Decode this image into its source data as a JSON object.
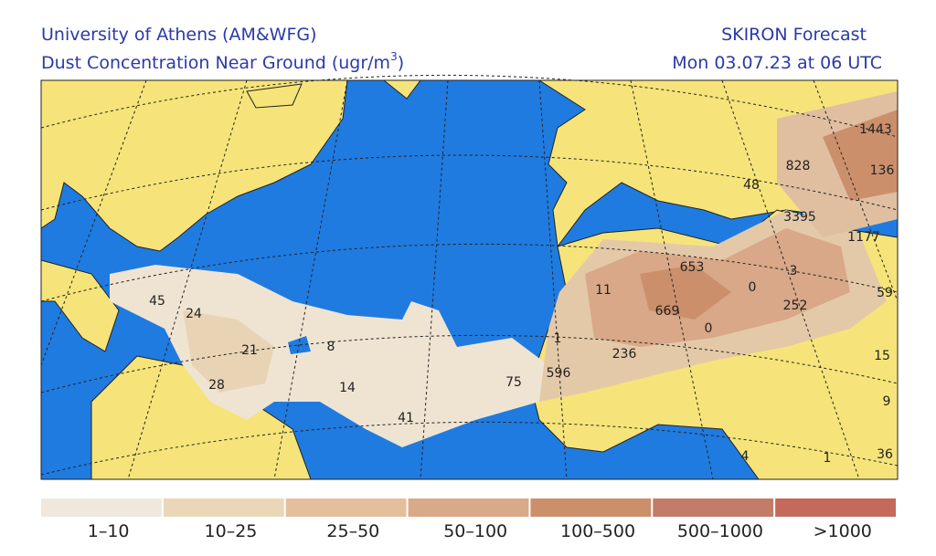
{
  "header": {
    "left_line1": "University of Athens (AM&WFG)",
    "left_line2": "Dust Concentration Near Ground (ugr/m",
    "left_line2_sup": "3",
    "left_line2_end": ")",
    "right_line1": "SKIRON Forecast",
    "right_line2": "Mon 03.07.23 at 06 UTC"
  },
  "map_labels": [
    1443,
    136,
    828,
    48,
    3395,
    1177,
    653,
    3,
    0,
    59,
    11,
    252,
    669,
    0,
    1,
    236,
    596,
    75,
    41,
    14,
    8,
    21,
    28,
    45,
    24,
    15,
    9,
    4,
    1,
    36
  ],
  "legend": [
    {
      "label": "1–10",
      "color": "#f0e8dc"
    },
    {
      "label": "10–25",
      "color": "#ead7b8"
    },
    {
      "label": "25–50",
      "color": "#e4bf9c"
    },
    {
      "label": "50–100",
      "color": "#d8aa88"
    },
    {
      "label": "100–500",
      "color": "#cc8f6c"
    },
    {
      "label": "500–1000",
      "color": "#c27c68"
    },
    {
      "label": ">1000",
      "color": "#c5695a"
    }
  ]
}
